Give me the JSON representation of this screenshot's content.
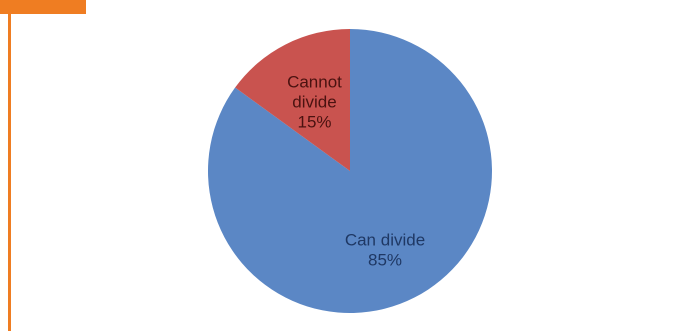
{
  "header": {
    "text": ""
  },
  "colors": {
    "accent": "#ef7d22",
    "can_divide": "#5b87c5",
    "cannot_divide": "#c9534f",
    "can_divide_text": "#1f3864",
    "cannot_divide_text": "#4a1210"
  },
  "chart_data": {
    "type": "pie",
    "title": "",
    "slices": [
      {
        "label_lines": [
          "Can divide"
        ],
        "value": 85,
        "value_label": "85%"
      },
      {
        "label_lines": [
          "Cannot",
          "divide"
        ],
        "value": 15,
        "value_label": "15%"
      }
    ]
  }
}
